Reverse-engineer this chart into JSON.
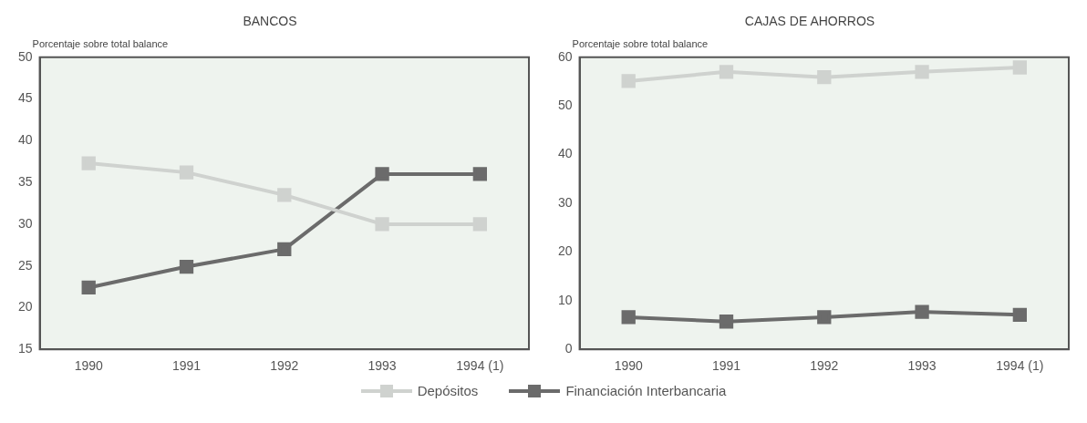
{
  "chart_data": [
    {
      "type": "line",
      "title": "BANCOS",
      "ylabel": "Porcentaje sobre total balance",
      "categories": [
        "1990",
        "1991",
        "1992",
        "1993",
        "1994 (1)"
      ],
      "series": [
        {
          "name": "Depósitos",
          "color": "#cfd2cf",
          "values": [
            37.3,
            36.2,
            33.5,
            30,
            30
          ]
        },
        {
          "name": "Financiación Interbancaria",
          "color": "#6b6b6b",
          "values": [
            22.4,
            24.9,
            27,
            36,
            36
          ]
        }
      ],
      "ylim": [
        15,
        50
      ],
      "yticks": [
        15,
        20,
        25,
        30,
        35,
        40,
        45,
        50
      ],
      "grid": false,
      "legend": "bottom",
      "marker": "square",
      "line_style": "solid"
    },
    {
      "type": "line",
      "title": "CAJAS DE AHORROS",
      "ylabel": "Porcentaje sobre total balance",
      "categories": [
        "1990",
        "1991",
        "1992",
        "1993",
        "1994 (1)"
      ],
      "series": [
        {
          "name": "Depósitos",
          "color": "#cfd2cf",
          "values": [
            55.1,
            57,
            55.9,
            57,
            57.9
          ]
        },
        {
          "name": "Financiación Interbancaria",
          "color": "#6b6b6b",
          "values": [
            6.6,
            5.7,
            6.6,
            7.7,
            7.1
          ]
        }
      ],
      "ylim": [
        0,
        60
      ],
      "yticks": [
        0,
        10,
        20,
        30,
        40,
        50,
        60
      ],
      "grid": false,
      "legend": "bottom",
      "marker": "square",
      "line_style": "solid"
    }
  ]
}
